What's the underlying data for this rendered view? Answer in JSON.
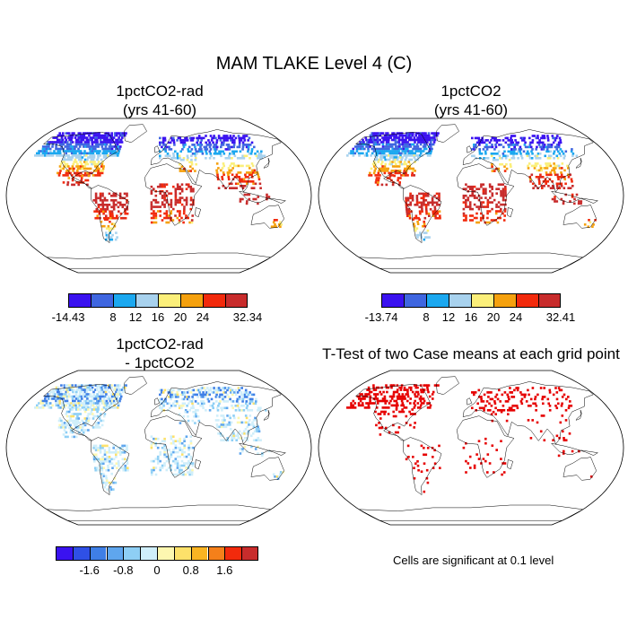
{
  "figure": {
    "title": "MAM TLAKE Level 4 (C)",
    "note": "Cells are significant at 0.1 level"
  },
  "panels": [
    {
      "id": "rad",
      "title_line1": "1pctCO2-rad",
      "title_line2": "(yrs 41-60)",
      "palette": [
        "#3a12f0",
        "#3f66e0",
        "#1ba8f0",
        "#a8d2ee",
        "#fbef7a",
        "#f5a10e",
        "#f22a0c",
        "#c82c2c"
      ],
      "tick_labels": [
        "-14.43",
        "8",
        "12",
        "16",
        "20",
        "24",
        "32.34"
      ],
      "tick_positions": [
        0,
        2,
        3,
        4,
        5,
        6,
        8
      ]
    },
    {
      "id": "ctl",
      "title_line1": "1pctCO2",
      "title_line2": "(yrs 41-60)",
      "palette": [
        "#3a12f0",
        "#3f66e0",
        "#1ba8f0",
        "#a8d2ee",
        "#fbef7a",
        "#f5a10e",
        "#f22a0c",
        "#c82c2c"
      ],
      "tick_labels": [
        "-13.74",
        "8",
        "12",
        "16",
        "20",
        "24",
        "32.41"
      ],
      "tick_positions": [
        0,
        2,
        3,
        4,
        5,
        6,
        8
      ]
    },
    {
      "id": "diff",
      "title_line1": "1pctCO2-rad",
      "title_line2": "- 1pctCO2",
      "palette": [
        "#3a12f0",
        "#2f50e6",
        "#3f7fe6",
        "#5fa6ee",
        "#8ecff5",
        "#cfeefa",
        "#fdf7b0",
        "#fde16a",
        "#f9b422",
        "#f5801a",
        "#f22a0c",
        "#c82c2c"
      ],
      "tick_labels": [
        "-1.6",
        "-0.8",
        "0",
        "0.8",
        "1.6"
      ],
      "tick_positions": [
        2,
        4,
        6,
        8,
        10
      ]
    },
    {
      "id": "ttest",
      "title_line1": "T-Test of two Case means at each grid point",
      "title_line2": ""
    }
  ],
  "colors": {
    "land_outline": "#000000",
    "significant": "#e60000"
  }
}
